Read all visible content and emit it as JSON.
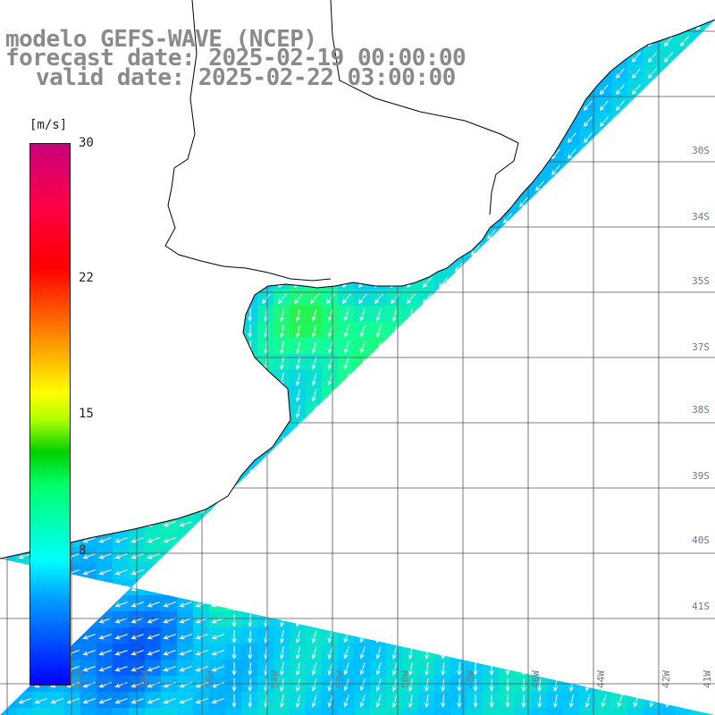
{
  "title": {
    "model": "modelo GEFS-WAVE (NCEP)",
    "forecast": "forecast date: 2025-02-19 00:00:00",
    "valid": "valid date: 2025-02-22 03:00:00"
  },
  "colorbar": {
    "unit": "[m/s]",
    "min": 0,
    "max": 30,
    "ticks": [
      "30",
      "22",
      "15",
      "8"
    ]
  },
  "map_labels": {
    "lat": [
      "30S",
      "34S",
      "35S",
      "37S",
      "38S",
      "39S",
      "40S",
      "41S"
    ],
    "lon": [
      "60W",
      "58W",
      "56W",
      "54W",
      "52W",
      "50W",
      "48W",
      "46W",
      "44W",
      "42W",
      "41W"
    ]
  },
  "colors": {
    "ocean_base": "#19c8ff",
    "coast": "#000000",
    "grid": "#606060",
    "arrow": "#ffffff",
    "title": "#8a8a8a"
  }
}
